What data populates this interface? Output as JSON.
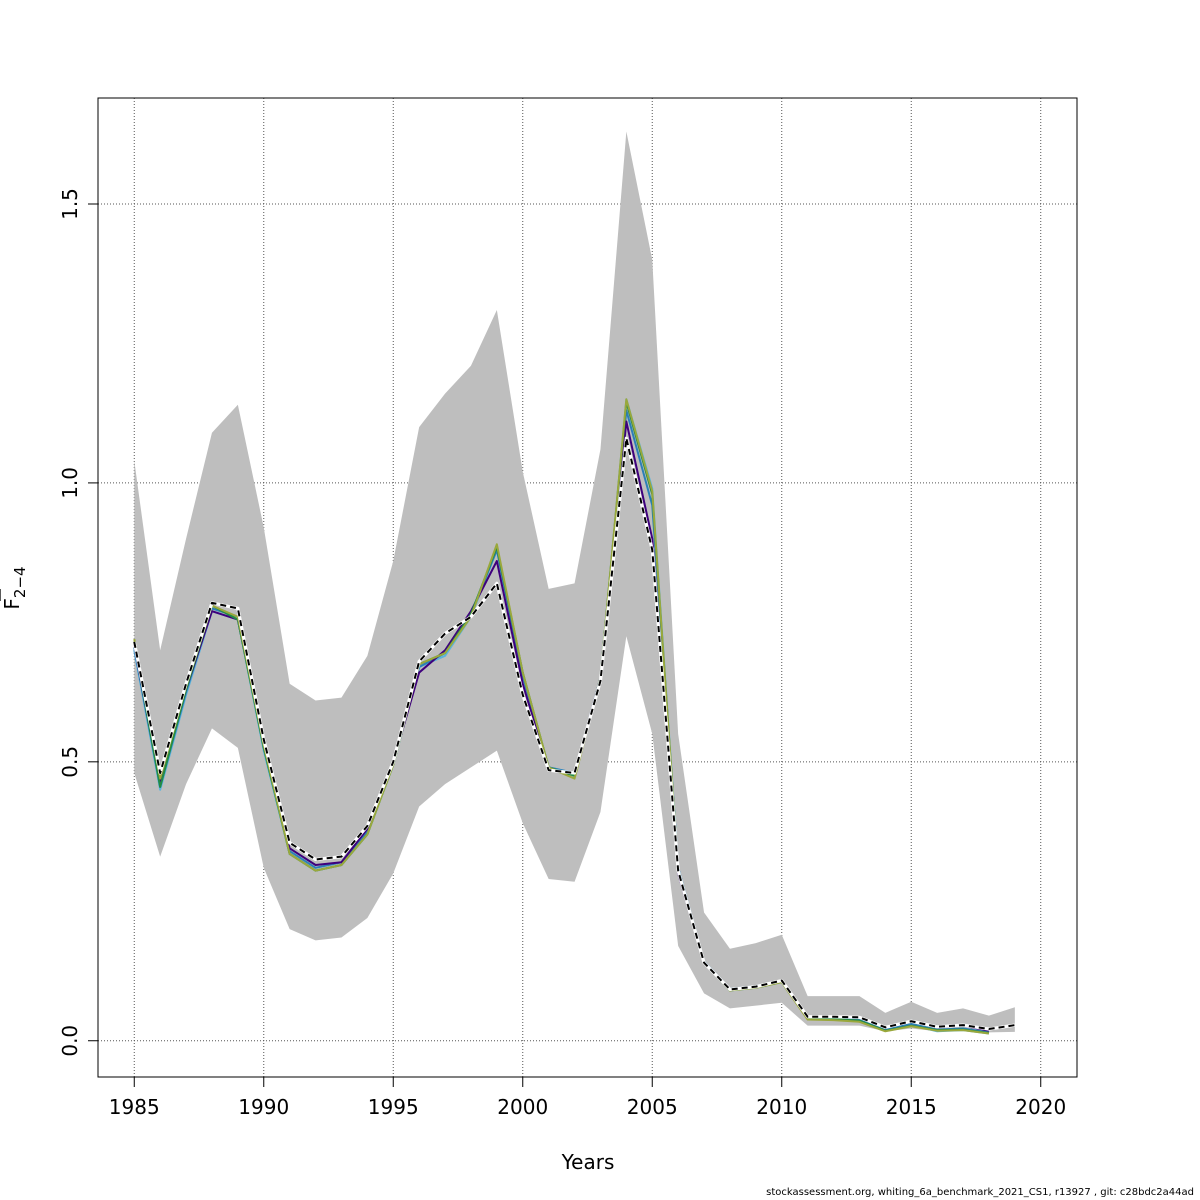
{
  "chart_data": {
    "type": "line",
    "title": "",
    "xlabel": "Years",
    "ylabel_main": "F",
    "ylabel_sub": "2−4",
    "xlim": [
      1983.6,
      2021.4
    ],
    "ylim": [
      -0.065,
      1.69
    ],
    "x_ticks": [
      1985,
      1990,
      1995,
      2000,
      2005,
      2010,
      2015,
      2020
    ],
    "y_ticks": [
      0.0,
      0.5,
      1.0,
      1.5
    ],
    "y_tick_labels": [
      "0.0",
      "0.5",
      "1.0",
      "1.5"
    ],
    "grid": true,
    "band": {
      "color": "#bebebe",
      "x": [
        1985,
        1986,
        1987,
        1988,
        1989,
        1990,
        1991,
        1992,
        1993,
        1994,
        1995,
        1996,
        1997,
        1998,
        1999,
        2000,
        2001,
        2002,
        2003,
        2004,
        2005,
        2006,
        2007,
        2008,
        2009,
        2010,
        2011,
        2012,
        2013,
        2014,
        2015,
        2016,
        2017,
        2018,
        2019
      ],
      "upper": [
        1.04,
        0.7,
        0.9,
        1.09,
        1.14,
        0.92,
        0.64,
        0.61,
        0.615,
        0.69,
        0.86,
        1.1,
        1.16,
        1.21,
        1.31,
        1.02,
        0.81,
        0.82,
        1.06,
        1.63,
        1.4,
        0.55,
        0.23,
        0.165,
        0.175,
        0.19,
        0.08,
        0.08,
        0.08,
        0.05,
        0.07,
        0.05,
        0.058,
        0.045,
        0.06
      ],
      "lower": [
        0.48,
        0.33,
        0.46,
        0.56,
        0.525,
        0.31,
        0.2,
        0.18,
        0.185,
        0.22,
        0.3,
        0.42,
        0.46,
        0.49,
        0.52,
        0.39,
        0.29,
        0.285,
        0.41,
        0.725,
        0.55,
        0.17,
        0.085,
        0.058,
        0.063,
        0.068,
        0.027,
        0.027,
        0.027,
        0.017,
        0.022,
        0.017,
        0.018,
        0.015,
        0.016
      ]
    },
    "series": [
      {
        "color": "#5ab4dc",
        "x": [
          1985,
          1986,
          1987,
          1988,
          1989,
          1990,
          1991,
          1992,
          1993,
          1994,
          1995,
          1996,
          1997,
          1998,
          1999,
          2000,
          2001,
          2002,
          2003,
          2004,
          2005,
          2006,
          2007,
          2008,
          2009,
          2010,
          2011,
          2012,
          2013,
          2014,
          2015,
          2016,
          2017,
          2018
        ],
        "values": [
          0.7,
          0.45,
          0.62,
          0.77,
          0.755,
          0.52,
          0.335,
          0.305,
          0.315,
          0.37,
          0.495,
          0.67,
          0.69,
          0.76,
          0.88,
          0.65,
          0.49,
          0.48,
          0.65,
          1.15,
          0.99,
          0.31,
          0.14,
          0.09,
          0.095,
          0.105,
          0.04,
          0.04,
          0.037,
          0.019,
          0.028,
          0.017,
          0.019,
          0.013
        ]
      },
      {
        "color": "#2c7fb8",
        "x": [
          1985,
          1986,
          1987,
          1988,
          1989,
          1990,
          1991,
          1992,
          1993,
          1994,
          1995,
          1996,
          1997,
          1998,
          1999,
          2000,
          2001,
          2002,
          2003,
          2004,
          2005,
          2006,
          2007,
          2008,
          2009,
          2010,
          2011,
          2012,
          2013,
          2014,
          2015,
          2016,
          2017,
          2018
        ],
        "values": [
          0.705,
          0.455,
          0.625,
          0.775,
          0.76,
          0.525,
          0.34,
          0.31,
          0.32,
          0.375,
          0.5,
          0.67,
          0.695,
          0.765,
          0.88,
          0.655,
          0.49,
          0.48,
          0.65,
          1.13,
          0.96,
          0.31,
          0.142,
          0.093,
          0.098,
          0.108,
          0.042,
          0.041,
          0.038,
          0.02,
          0.03,
          0.02,
          0.022,
          0.015
        ]
      },
      {
        "color": "#3f007d",
        "x": [
          1985,
          1986,
          1987,
          1988,
          1989,
          1990,
          1991,
          1992,
          1993,
          1994,
          1995,
          1996,
          1997,
          1998,
          1999,
          2000,
          2001,
          2002,
          2003,
          2004,
          2005,
          2006,
          2007,
          2008,
          2009,
          2010,
          2011,
          2012,
          2013,
          2014,
          2015,
          2016,
          2017,
          2018
        ],
        "values": [
          0.71,
          0.46,
          0.63,
          0.77,
          0.755,
          0.53,
          0.345,
          0.315,
          0.32,
          0.38,
          0.5,
          0.66,
          0.7,
          0.77,
          0.86,
          0.64,
          0.485,
          0.48,
          0.65,
          1.11,
          0.9,
          0.3,
          0.14,
          0.092,
          0.097,
          0.108,
          0.043,
          0.043,
          0.042,
          0.024,
          0.035,
          0.024,
          0.027,
          0.018
        ]
      },
      {
        "color": "#238b45",
        "x": [
          1985,
          1986,
          1987,
          1988,
          1989,
          1990,
          1991,
          1992,
          1993,
          1994,
          1995,
          1996,
          1997,
          1998,
          1999,
          2000,
          2001,
          2002,
          2003,
          2004,
          2005,
          2006,
          2007,
          2008,
          2009,
          2010,
          2011,
          2012,
          2013,
          2014,
          2015,
          2016,
          2017,
          2018
        ],
        "values": [
          0.715,
          0.455,
          0.63,
          0.78,
          0.755,
          0.525,
          0.335,
          0.305,
          0.315,
          0.37,
          0.495,
          0.675,
          0.695,
          0.765,
          0.885,
          0.66,
          0.49,
          0.475,
          0.65,
          1.145,
          0.98,
          0.305,
          0.14,
          0.092,
          0.097,
          0.107,
          0.04,
          0.039,
          0.036,
          0.018,
          0.027,
          0.019,
          0.02,
          0.014
        ]
      },
      {
        "color": "#9aa83c",
        "x": [
          1985,
          1986,
          1987,
          1988,
          1989,
          1990,
          1991,
          1992,
          1993,
          1994,
          1995,
          1996,
          1997,
          1998,
          1999,
          2000,
          2001,
          2002,
          2003,
          2004,
          2005,
          2006,
          2007,
          2008,
          2009,
          2010,
          2011,
          2012,
          2013,
          2014,
          2015,
          2016,
          2017,
          2018
        ],
        "values": [
          0.72,
          0.47,
          0.635,
          0.78,
          0.76,
          0.53,
          0.335,
          0.305,
          0.315,
          0.37,
          0.495,
          0.675,
          0.695,
          0.76,
          0.89,
          0.66,
          0.49,
          0.47,
          0.65,
          1.15,
          0.985,
          0.305,
          0.14,
          0.09,
          0.095,
          0.105,
          0.038,
          0.037,
          0.034,
          0.017,
          0.026,
          0.018,
          0.019,
          0.013
        ]
      },
      {
        "color": "#000000",
        "dash": "6,4",
        "x": [
          1985,
          1986,
          1987,
          1988,
          1989,
          1990,
          1991,
          1992,
          1993,
          1994,
          1995,
          1996,
          1997,
          1998,
          1999,
          2000,
          2001,
          2002,
          2003,
          2004,
          2005,
          2006,
          2007,
          2008,
          2009,
          2010,
          2011,
          2012,
          2013,
          2014,
          2015,
          2016,
          2017,
          2018,
          2019
        ],
        "values": [
          0.715,
          0.48,
          0.64,
          0.785,
          0.775,
          0.54,
          0.355,
          0.325,
          0.33,
          0.385,
          0.5,
          0.68,
          0.73,
          0.76,
          0.82,
          0.62,
          0.485,
          0.48,
          0.645,
          1.08,
          0.88,
          0.305,
          0.14,
          0.092,
          0.097,
          0.108,
          0.043,
          0.043,
          0.042,
          0.024,
          0.035,
          0.025,
          0.028,
          0.021,
          0.028
        ]
      }
    ]
  },
  "footer": {
    "credit": "stockassessment.org, whiting_6a_benchmark_2021_CS1, r13927 , git: c28bdc2a44ad"
  }
}
